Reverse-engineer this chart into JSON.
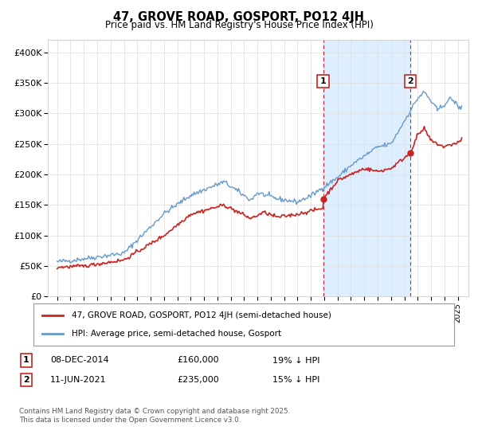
{
  "title": "47, GROVE ROAD, GOSPORT, PO12 4JH",
  "subtitle": "Price paid vs. HM Land Registry's House Price Index (HPI)",
  "hpi_color": "#6699cc",
  "price_color": "#cc2222",
  "shaded_color": "#ddeeff",
  "vline_color": "#cc2222",
  "ylim": [
    0,
    420000
  ],
  "yticks": [
    0,
    50000,
    100000,
    150000,
    200000,
    250000,
    300000,
    350000,
    400000
  ],
  "ytick_labels": [
    "£0",
    "£50K",
    "£100K",
    "£150K",
    "£200K",
    "£250K",
    "£300K",
    "£350K",
    "£400K"
  ],
  "purchase1_date": "08-DEC-2014",
  "purchase1_price": 160000,
  "purchase1_pct": "19% ↓ HPI",
  "purchase1_label": "1",
  "purchase1_year": 2014.92,
  "purchase2_date": "11-JUN-2021",
  "purchase2_price": 235000,
  "purchase2_pct": "15% ↓ HPI",
  "purchase2_label": "2",
  "purchase2_year": 2021.44,
  "legend_line1": "47, GROVE ROAD, GOSPORT, PO12 4JH (semi-detached house)",
  "legend_line2": "HPI: Average price, semi-detached house, Gosport",
  "footer": "Contains HM Land Registry data © Crown copyright and database right 2025.\nThis data is licensed under the Open Government Licence v3.0.",
  "background_color": "#ffffff"
}
